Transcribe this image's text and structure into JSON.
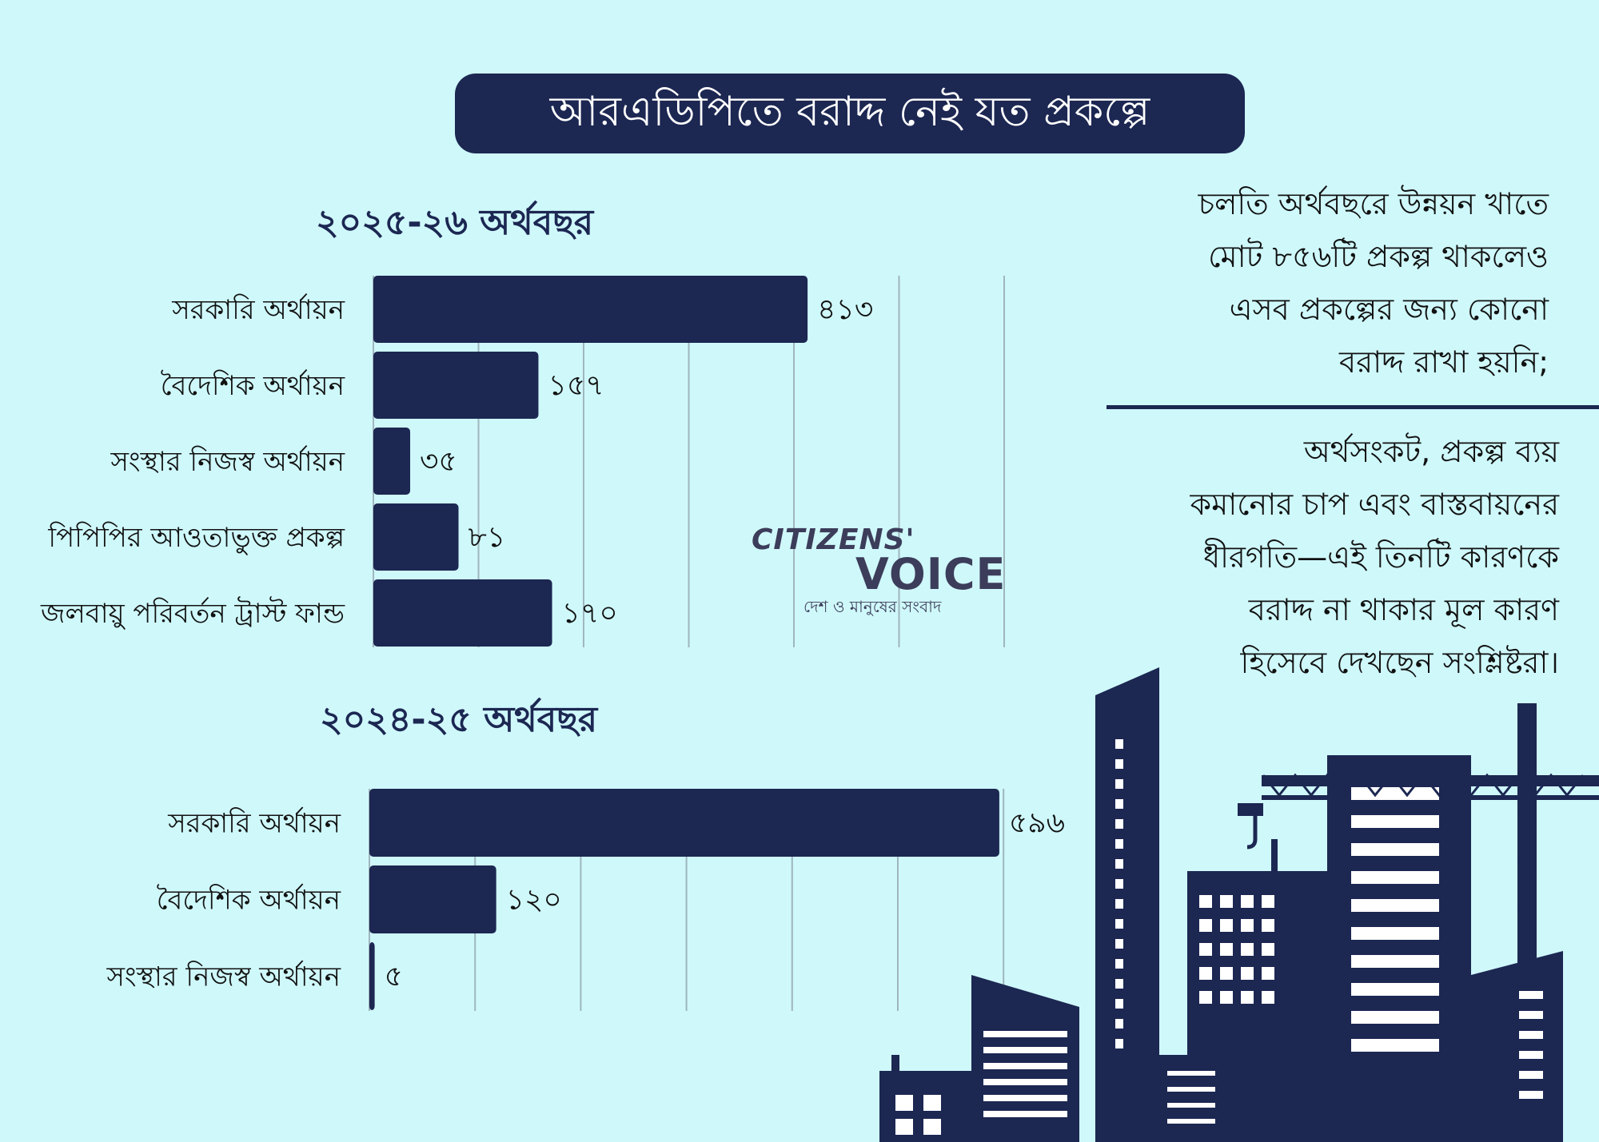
{
  "title": "আরএডিপিতে বরাদ্দ নেই যত প্রকল্পে",
  "watermark": {
    "line1": "CITIZENS'",
    "line2": "VOICE",
    "tagline": "দেশ ও মানুষের সংবাদ"
  },
  "notes": {
    "top": [
      "চলতি অর্থবছরে উন্নয়ন খাতে",
      "মোট ৮৫৬টি প্রকল্প থাকলেও",
      "এসব প্রকল্পের জন্য কোনো",
      "বরাদ্দ রাখা হয়নি;"
    ],
    "bottom": [
      "অর্থসংকট, প্রকল্প ব্যয়",
      "কমানোর চাপ এবং বাস্তবায়নের",
      "ধীরগতি—এই তিনটি কারণকে",
      "বরাদ্দ না থাকার মূল কারণ",
      "হিসেবে দেখছেন সংশ্লিষ্টরা।"
    ]
  },
  "colors": {
    "bar": "#1c2752",
    "background": "#cff8fa",
    "grid": "#9fb6bd"
  },
  "chart_data": [
    {
      "type": "bar",
      "orientation": "horizontal",
      "title": "২০২৫-২৬ অর্থবছর",
      "categories": [
        "সরকারি অর্থায়ন",
        "বৈদেশিক অর্থায়ন",
        "সংস্থার নিজস্ব অর্থায়ন",
        "পিপিপির আওতাভুক্ত প্রকল্প",
        "জলবায়ু পরিবর্তন ট্রাস্ট ফান্ড"
      ],
      "values": [
        413,
        157,
        35,
        81,
        170
      ],
      "value_labels": [
        "৪১৩",
        "১৫৭",
        "৩৫",
        "৮১",
        "১৭০"
      ],
      "xlim": [
        0,
        600
      ],
      "grid": true
    },
    {
      "type": "bar",
      "orientation": "horizontal",
      "title": "২০২৪-২৫ অর্থবছর",
      "categories": [
        "সরকারি অর্থায়ন",
        "বৈদেশিক অর্থায়ন",
        "সংস্থার নিজস্ব অর্থায়ন"
      ],
      "values": [
        596,
        120,
        5
      ],
      "value_labels": [
        "৫৯৬",
        "১২০",
        "৫"
      ],
      "xlim": [
        0,
        600
      ],
      "grid": true
    }
  ]
}
